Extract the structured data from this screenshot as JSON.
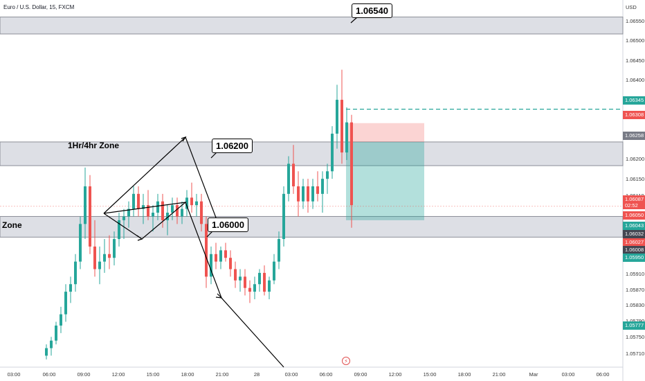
{
  "symbol": {
    "title": "Euro / U.S. Dollar, 15, FXCM"
  },
  "currency_label": "USD",
  "annotations": {
    "zone_top_label": "1.06540",
    "zone_mid_label": "1.06200",
    "zone_low_label": "1.06000",
    "zone_mid_text": "1Hr/4hr Zone",
    "zone_low_text": "Zone"
  },
  "price_axis": [
    "1.06550",
    "1.06500",
    "1.06450",
    "1.06400",
    "1.06200",
    "1.06150",
    "1.06110",
    "1.05910",
    "1.05870",
    "1.05830",
    "1.05790",
    "1.05750",
    "1.05710"
  ],
  "price_tags": [
    {
      "label": "1.06345",
      "color": "#26a69a"
    },
    {
      "label": "1.06308",
      "color": "#ef5350"
    },
    {
      "label": "1.06258",
      "color": "#787b86"
    },
    {
      "label": "1.06087",
      "sub": "02:52",
      "color": "#ef5350"
    },
    {
      "label": "1.06050",
      "color": "#ef5350"
    },
    {
      "label": "1.06043",
      "color": "#26a69a"
    },
    {
      "label": "1.06032",
      "color": "#434651"
    },
    {
      "label": "1.06027",
      "color": "#ef5350"
    },
    {
      "label": "1.06008",
      "color": "#434651"
    },
    {
      "label": "1.05950",
      "color": "#26a69a"
    },
    {
      "label": "1.05777",
      "color": "#26a69a"
    }
  ],
  "time_axis": [
    "03:00",
    "06:00",
    "09:00",
    "12:00",
    "15:00",
    "18:00",
    "21:00",
    "28",
    "03:00",
    "06:00",
    "09:00",
    "12:00",
    "15:00",
    "18:00",
    "21:00",
    "Mar",
    "03:00",
    "06:00"
  ],
  "colors": {
    "up": "#26a69a",
    "down": "#ef5350",
    "zone": "#d1d4dc",
    "target": "#26a69a",
    "stop": "#ef5350"
  },
  "chart_data": {
    "type": "candlestick",
    "title": "Euro / U.S. Dollar, 15, FXCM",
    "ylim": [
      1.0569,
      1.066
    ],
    "price_tags": [
      1.06345,
      1.06308,
      1.06258,
      1.06087,
      1.0605,
      1.06043,
      1.06032,
      1.06027,
      1.06008,
      1.0595,
      1.05777
    ],
    "zones": [
      {
        "label": "1.06540",
        "top": 1.0659,
        "bottom": 1.06545
      },
      {
        "label": "1.06200",
        "top": 1.06258,
        "bottom": 1.06195
      },
      {
        "label": "1.06000",
        "top": 1.0606,
        "bottom": 1.06005
      }
    ],
    "position": {
      "type": "short",
      "entry": 1.06258,
      "stop": 1.06308,
      "target": 1.0605
    },
    "candles": [
      [
        1.0569,
        1.0572,
        1.0568,
        1.0571
      ],
      [
        1.0571,
        1.0574,
        1.0569,
        1.0573
      ],
      [
        1.0573,
        1.0578,
        1.0572,
        1.0577
      ],
      [
        1.0577,
        1.0582,
        1.0575,
        1.058
      ],
      [
        1.058,
        1.0588,
        1.0578,
        1.0586
      ],
      [
        1.0586,
        1.059,
        1.0583,
        1.0588
      ],
      [
        1.0588,
        1.0596,
        1.0586,
        1.0594
      ],
      [
        1.0594,
        1.0606,
        1.0592,
        1.0604
      ],
      [
        1.0604,
        1.0619,
        1.06,
        1.0614
      ],
      [
        1.0614,
        1.0617,
        1.0596,
        1.0598
      ],
      [
        1.0598,
        1.0605,
        1.059,
        1.0592
      ],
      [
        1.0592,
        1.0598,
        1.0588,
        1.0594
      ],
      [
        1.0594,
        1.06,
        1.0591,
        1.0596
      ],
      [
        1.0596,
        1.0601,
        1.0592,
        1.0595
      ],
      [
        1.0595,
        1.0602,
        1.0593,
        1.06
      ],
      [
        1.06,
        1.0607,
        1.0598,
        1.0605
      ],
      [
        1.0605,
        1.0608,
        1.06,
        1.0606
      ],
      [
        1.0606,
        1.061,
        1.0603,
        1.0608
      ],
      [
        1.0608,
        1.0614,
        1.0606,
        1.0612
      ],
      [
        1.0612,
        1.0614,
        1.0606,
        1.0608
      ],
      [
        1.0608,
        1.0612,
        1.0604,
        1.0609
      ],
      [
        1.0609,
        1.0613,
        1.0605,
        1.0606
      ],
      [
        1.0606,
        1.0609,
        1.0602,
        1.0607
      ],
      [
        1.0607,
        1.0612,
        1.0605,
        1.061
      ],
      [
        1.061,
        1.0612,
        1.0603,
        1.0605
      ],
      [
        1.0605,
        1.0609,
        1.0601,
        1.0607
      ],
      [
        1.0607,
        1.0611,
        1.0605,
        1.0609
      ],
      [
        1.0609,
        1.0611,
        1.0604,
        1.0606
      ],
      [
        1.0606,
        1.061,
        1.0604,
        1.0608
      ],
      [
        1.0608,
        1.0613,
        1.0606,
        1.0611
      ],
      [
        1.0611,
        1.0615,
        1.0607,
        1.0609
      ],
      [
        1.0609,
        1.0612,
        1.0606,
        1.061
      ],
      [
        1.061,
        1.0612,
        1.0602,
        1.0604
      ],
      [
        1.0604,
        1.0606,
        1.0587,
        1.059
      ],
      [
        1.059,
        1.0598,
        1.0588,
        1.0596
      ],
      [
        1.0596,
        1.0599,
        1.0592,
        1.0594
      ],
      [
        1.0594,
        1.0598,
        1.0592,
        1.0597
      ],
      [
        1.0597,
        1.0599,
        1.0594,
        1.0595
      ],
      [
        1.0595,
        1.0597,
        1.059,
        1.0592
      ],
      [
        1.0592,
        1.0594,
        1.0587,
        1.0589
      ],
      [
        1.0589,
        1.0592,
        1.0586,
        1.059
      ],
      [
        1.059,
        1.0592,
        1.0585,
        1.0587
      ],
      [
        1.0587,
        1.0589,
        1.0583,
        1.0586
      ],
      [
        1.0586,
        1.059,
        1.0584,
        1.0588
      ],
      [
        1.0588,
        1.0592,
        1.0586,
        1.0591
      ],
      [
        1.0591,
        1.0593,
        1.0585,
        1.0586
      ],
      [
        1.0586,
        1.059,
        1.0584,
        1.0589
      ],
      [
        1.0589,
        1.0596,
        1.0588,
        1.0594
      ],
      [
        1.0594,
        1.0602,
        1.0592,
        1.06
      ],
      [
        1.06,
        1.0614,
        1.0598,
        1.0612
      ],
      [
        1.0612,
        1.0622,
        1.061,
        1.062
      ],
      [
        1.062,
        1.0625,
        1.0612,
        1.0614
      ],
      [
        1.0614,
        1.0618,
        1.0606,
        1.061
      ],
      [
        1.061,
        1.0616,
        1.0608,
        1.0614
      ],
      [
        1.0614,
        1.0616,
        1.0607,
        1.061
      ],
      [
        1.061,
        1.0616,
        1.0608,
        1.0614
      ],
      [
        1.0614,
        1.0618,
        1.061,
        1.0612
      ],
      [
        1.0612,
        1.0618,
        1.0607,
        1.0616
      ],
      [
        1.0616,
        1.062,
        1.0612,
        1.0618
      ],
      [
        1.0618,
        1.063,
        1.0616,
        1.0628
      ],
      [
        1.0628,
        1.0641,
        1.0624,
        1.0637
      ],
      [
        1.0637,
        1.0645,
        1.062,
        1.0623
      ],
      [
        1.0623,
        1.0635,
        1.0621,
        1.0631
      ],
      [
        1.0631,
        1.0633,
        1.0603,
        1.0609
      ]
    ]
  }
}
